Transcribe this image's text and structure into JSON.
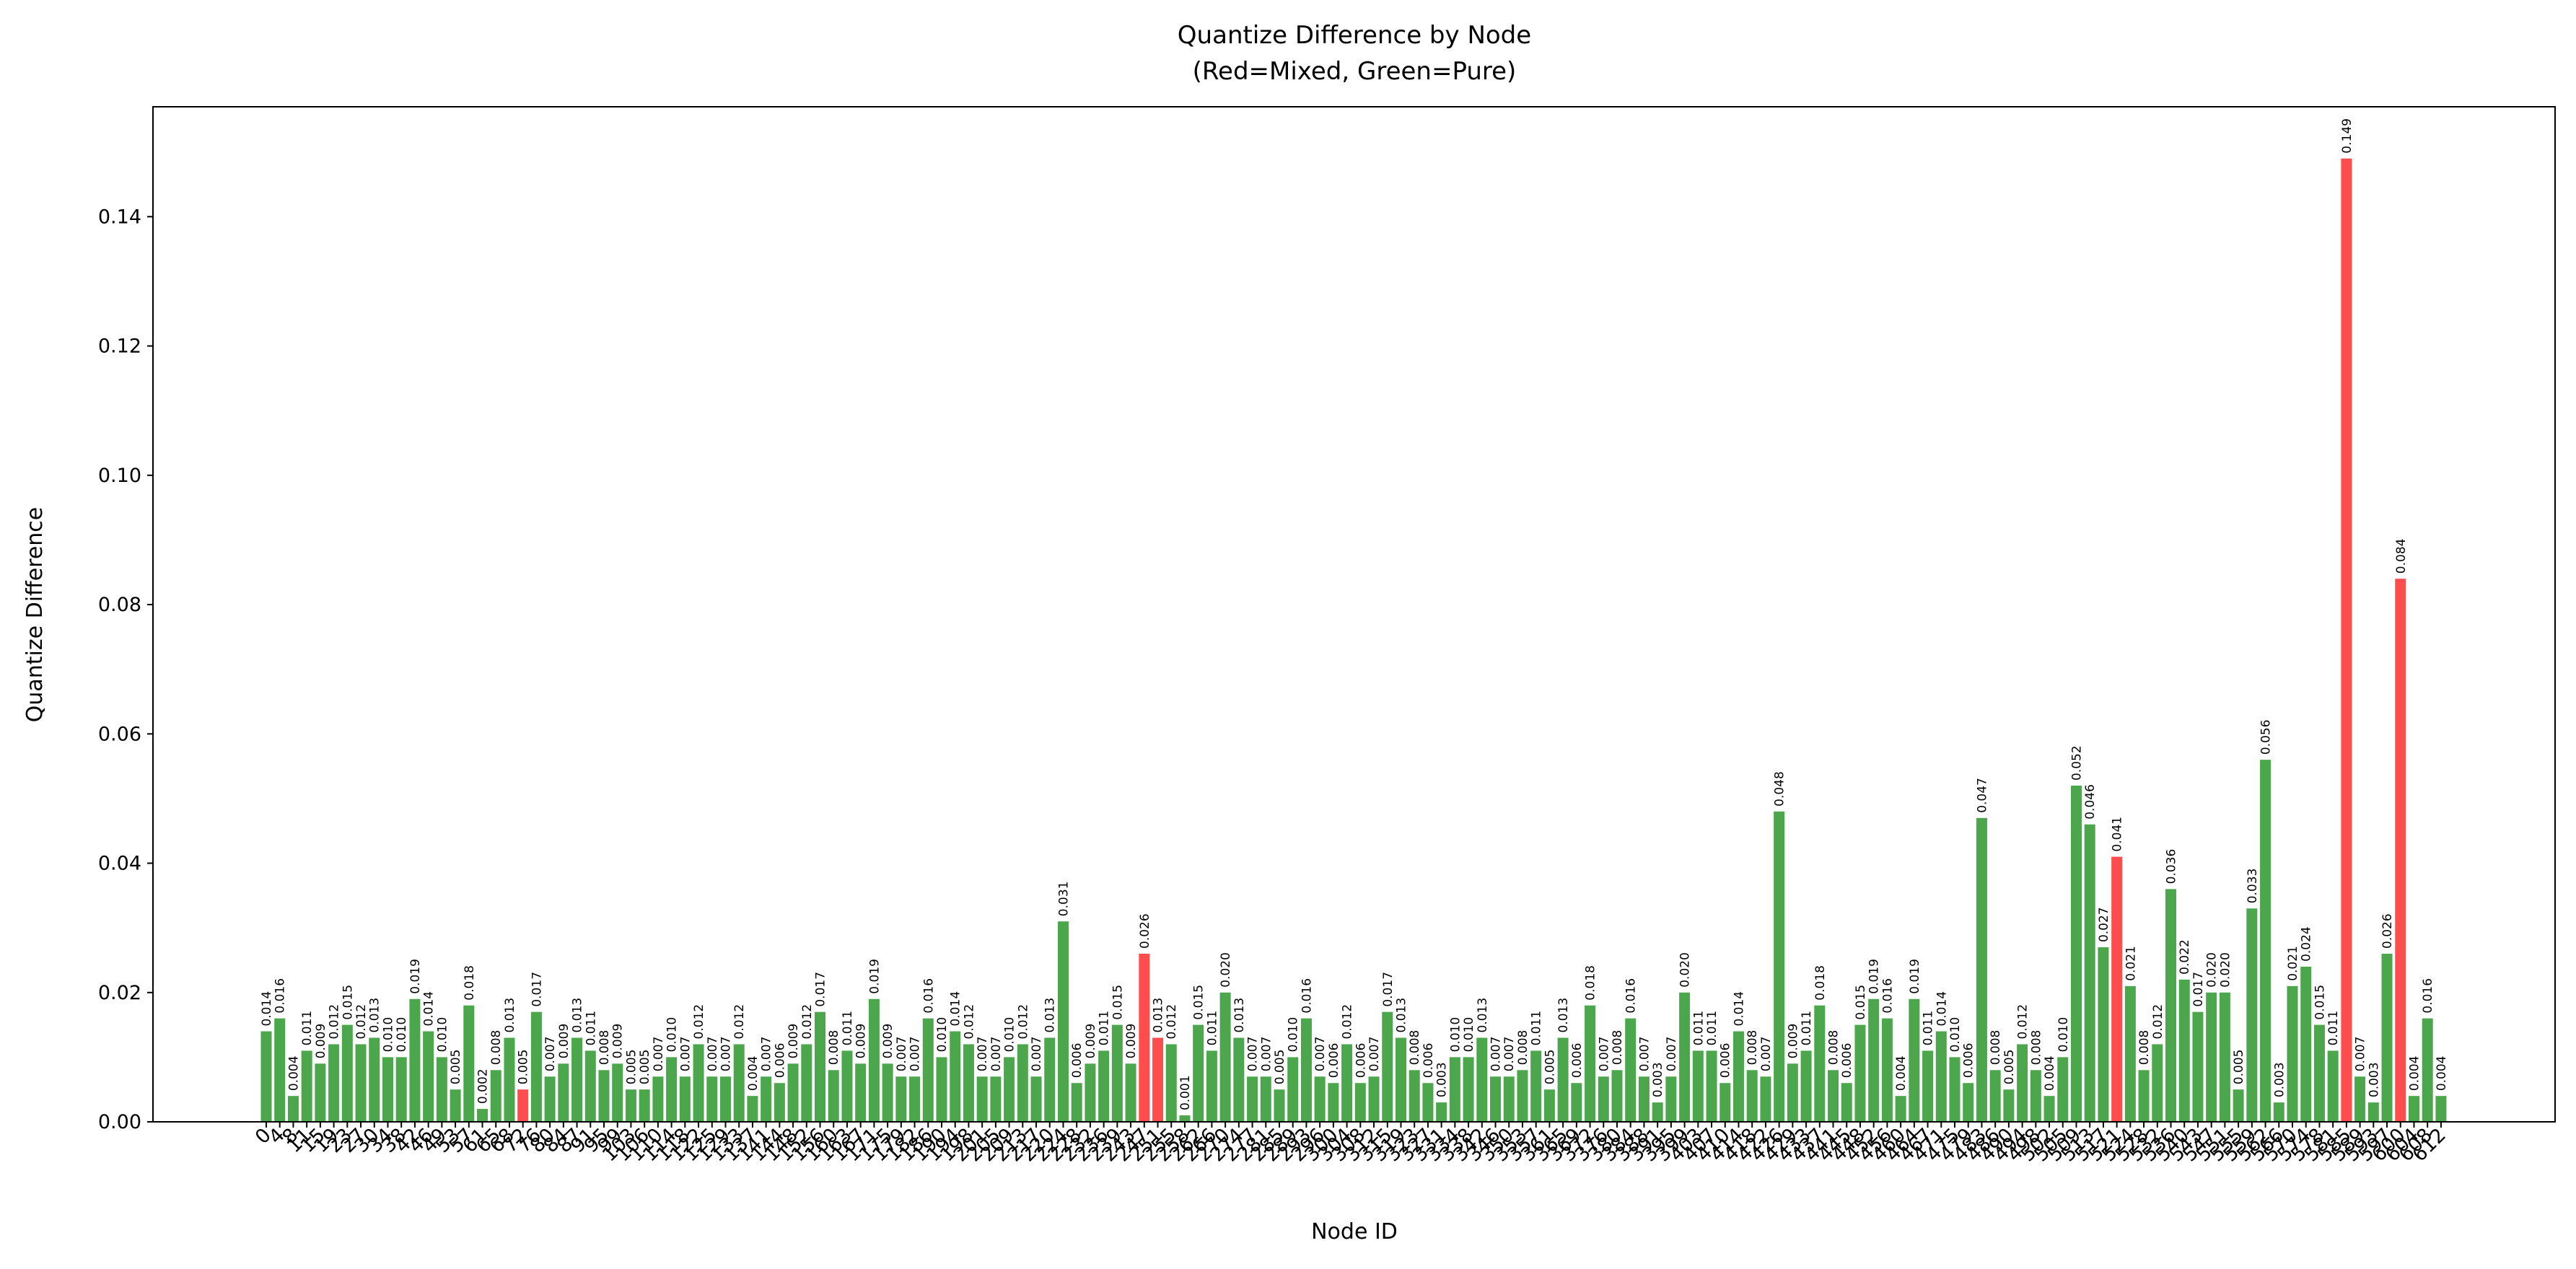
{
  "chart_data": {
    "type": "bar",
    "title": "Quantize Difference by Node",
    "subtitle": "(Red=Mixed, Green=Pure)",
    "x_label": "Node ID",
    "y_label": "Quantize Difference",
    "categories": [
      "0",
      "4",
      "8",
      "11",
      "15",
      "19",
      "23",
      "27",
      "30",
      "34",
      "38",
      "42",
      "46",
      "49",
      "53",
      "57",
      "61",
      "65",
      "68",
      "72",
      "76",
      "80",
      "84",
      "87",
      "91",
      "95",
      "99",
      "103",
      "106",
      "110",
      "114",
      "118",
      "122",
      "125",
      "129",
      "133",
      "137",
      "141",
      "144",
      "148",
      "152",
      "156",
      "160",
      "163",
      "167",
      "171",
      "175",
      "179",
      "182",
      "186",
      "190",
      "194",
      "198",
      "201",
      "205",
      "209",
      "213",
      "217",
      "220",
      "224",
      "228",
      "232",
      "236",
      "239",
      "243",
      "247",
      "251",
      "255",
      "258",
      "262",
      "266",
      "270",
      "274",
      "277",
      "281",
      "285",
      "289",
      "293",
      "296",
      "300",
      "304",
      "308",
      "312",
      "315",
      "319",
      "323",
      "327",
      "331",
      "334",
      "338",
      "342",
      "346",
      "350",
      "353",
      "357",
      "361",
      "365",
      "369",
      "372",
      "376",
      "380",
      "384",
      "388",
      "391",
      "395",
      "399",
      "403",
      "407",
      "410",
      "414",
      "418",
      "422",
      "426",
      "429",
      "433",
      "437",
      "441",
      "445",
      "448",
      "452",
      "456",
      "460",
      "464",
      "467",
      "471",
      "475",
      "479",
      "483",
      "486",
      "490",
      "494",
      "498",
      "502",
      "505",
      "509",
      "513",
      "517",
      "521",
      "524",
      "528",
      "532",
      "536",
      "540",
      "543",
      "547",
      "551",
      "555",
      "559",
      "562",
      "566",
      "570",
      "574",
      "578",
      "581",
      "585",
      "589",
      "593",
      "597",
      "600",
      "604",
      "608",
      "612"
    ],
    "values": [
      0.014,
      0.016,
      0.004,
      0.011,
      0.009,
      0.012,
      0.015,
      0.012,
      0.013,
      0.01,
      0.01,
      0.019,
      0.014,
      0.01,
      0.005,
      0.018,
      0.002,
      0.008,
      0.013,
      0.005,
      0.017,
      0.007,
      0.009,
      0.013,
      0.011,
      0.008,
      0.009,
      0.005,
      0.005,
      0.007,
      0.01,
      0.007,
      0.012,
      0.007,
      0.007,
      0.012,
      0.004,
      0.007,
      0.006,
      0.009,
      0.012,
      0.017,
      0.008,
      0.011,
      0.009,
      0.019,
      0.009,
      0.007,
      0.007,
      0.016,
      0.01,
      0.014,
      0.012,
      0.007,
      0.007,
      0.01,
      0.012,
      0.007,
      0.013,
      0.031,
      0.006,
      0.009,
      0.011,
      0.015,
      0.009,
      0.026,
      0.013,
      0.012,
      0.001,
      0.015,
      0.011,
      0.02,
      0.013,
      0.007,
      0.007,
      0.005,
      0.01,
      0.016,
      0.007,
      0.006,
      0.012,
      0.006,
      0.007,
      0.017,
      0.013,
      0.008,
      0.006,
      0.003,
      0.01,
      0.01,
      0.013,
      0.007,
      0.007,
      0.008,
      0.011,
      0.005,
      0.013,
      0.006,
      0.018,
      0.007,
      0.008,
      0.016,
      0.007,
      0.003,
      0.007,
      0.02,
      0.011,
      0.011,
      0.006,
      0.014,
      0.008,
      0.007,
      0.048,
      0.009,
      0.011,
      0.018,
      0.008,
      0.006,
      0.015,
      0.019,
      0.016,
      0.004,
      0.019,
      0.011,
      0.014,
      0.01,
      0.006,
      0.047,
      0.008,
      0.005,
      0.012,
      0.008,
      0.004,
      0.01,
      0.052,
      0.046,
      0.027,
      0.041,
      0.021,
      0.008,
      0.012,
      0.036,
      0.022,
      0.017,
      0.02,
      0.02,
      0.005,
      0.033,
      0.056,
      0.003,
      0.021,
      0.024,
      0.015,
      0.011,
      0.149,
      0.007,
      0.003,
      0.026,
      0.084,
      0.004,
      0.016,
      0.004
    ],
    "value_labels": [
      "0.014",
      "0.016",
      "0.004",
      "0.011",
      "0.009",
      "0.012",
      "0.015",
      "0.012",
      "0.013",
      "0.010",
      "0.010",
      "0.019",
      "0.014",
      "0.010",
      "0.005",
      "0.018",
      "0.002",
      "0.008",
      "0.013",
      "0.005",
      "0.017",
      "0.007",
      "0.009",
      "0.013",
      "0.011",
      "0.008",
      "0.009",
      "0.005",
      "0.005",
      "0.007",
      "0.010",
      "0.007",
      "0.012",
      "0.007",
      "0.007",
      "0.012",
      "0.004",
      "0.007",
      "0.006",
      "0.009",
      "0.012",
      "0.017",
      "0.008",
      "0.011",
      "0.009",
      "0.019",
      "0.009",
      "0.007",
      "0.007",
      "0.016",
      "0.010",
      "0.014",
      "0.012",
      "0.007",
      "0.007",
      "0.010",
      "0.012",
      "0.007",
      "0.013",
      "0.031",
      "0.006",
      "0.009",
      "0.011",
      "0.015",
      "0.009",
      "0.026",
      "0.013",
      "0.012",
      "0.001",
      "0.015",
      "0.011",
      "0.020",
      "0.013",
      "0.007",
      "0.007",
      "0.005",
      "0.010",
      "0.016",
      "0.007",
      "0.006",
      "0.012",
      "0.006",
      "0.007",
      "0.017",
      "0.013",
      "0.008",
      "0.006",
      "0.003",
      "0.010",
      "0.010",
      "0.013",
      "0.007",
      "0.007",
      "0.008",
      "0.011",
      "0.005",
      "0.013",
      "0.006",
      "0.018",
      "0.007",
      "0.008",
      "0.016",
      "0.007",
      "0.003",
      "0.007",
      "0.020",
      "0.011",
      "0.011",
      "0.006",
      "0.014",
      "0.008",
      "0.007",
      "0.048",
      "0.009",
      "0.011",
      "0.018",
      "0.008",
      "0.006",
      "0.015",
      "0.019",
      "0.016",
      "0.004",
      "0.019",
      "0.011",
      "0.014",
      "0.010",
      "0.006",
      "0.047",
      "0.008",
      "0.005",
      "0.012",
      "0.008",
      "0.004",
      "0.010",
      "0.052",
      "0.046",
      "0.027",
      "0.041",
      "0.021",
      "0.008",
      "0.012",
      "0.036",
      "0.022",
      "0.017",
      "0.020",
      "0.020",
      "0.005",
      "0.033",
      "0.056",
      "0.003",
      "0.021",
      "0.024",
      "0.015",
      "0.011",
      "0.149",
      "0.007",
      "0.003",
      "0.026",
      "0.084",
      "0.004",
      "0.016",
      "0.004"
    ],
    "mixed_color": "#ff4c4c",
    "pure_color": "#4ca64c",
    "mixed": [
      19,
      65,
      66,
      137,
      154,
      158
    ],
    "ylim": [
      0,
      0.157
    ],
    "yticks": [
      {
        "value": 0,
        "label": "0.00"
      },
      {
        "value": 0.02,
        "label": "0.02"
      },
      {
        "value": 0.04,
        "label": "0.04"
      },
      {
        "value": 0.06,
        "label": "0.06"
      },
      {
        "value": 0.08,
        "label": "0.08"
      },
      {
        "value": 0.1,
        "label": "0.10"
      },
      {
        "value": 0.12,
        "label": "0.12"
      },
      {
        "value": 0.14,
        "label": "0.14"
      }
    ],
    "grid": false
  }
}
